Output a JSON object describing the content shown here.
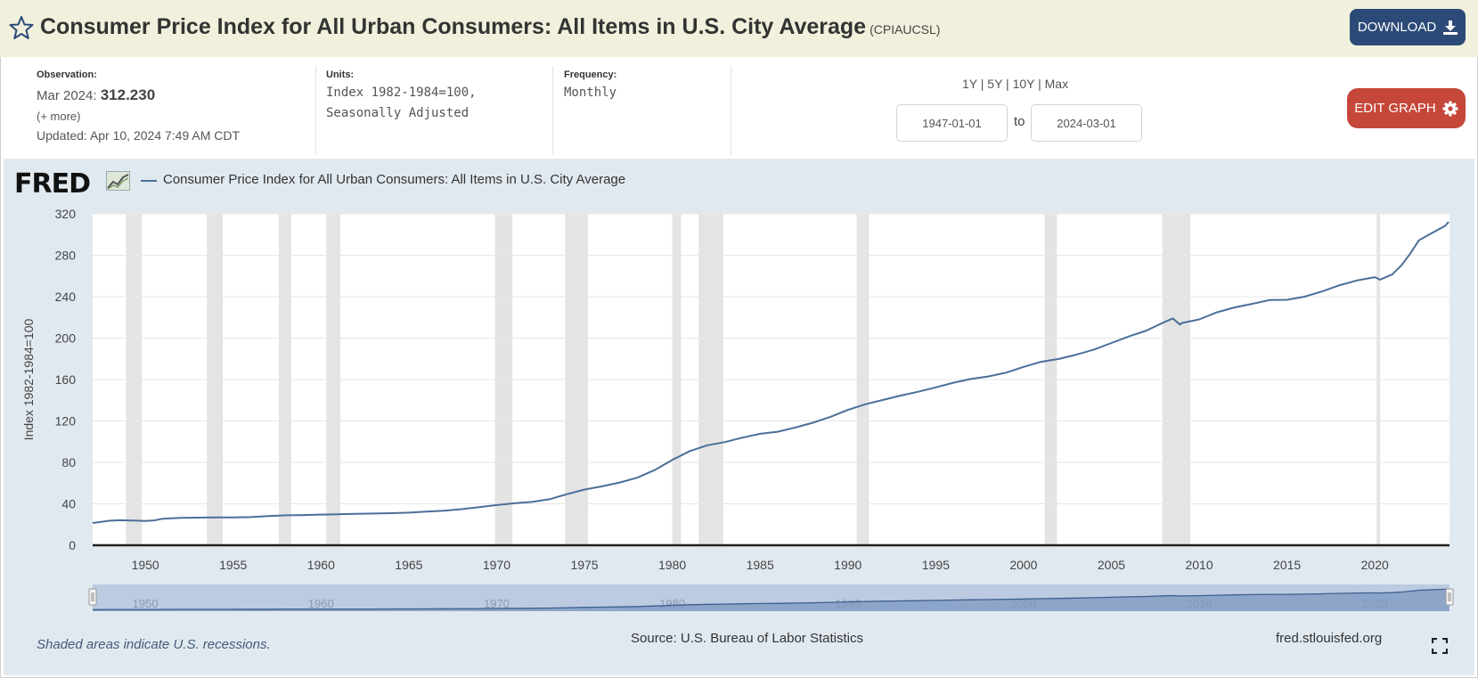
{
  "header": {
    "title": "Consumer Price Index for All Urban Consumers: All Items in U.S. City Average",
    "code": "(CPIAUCSL)",
    "download_label": "DOWNLOAD"
  },
  "meta": {
    "observation_label": "Observation:",
    "observation_date": "Mar 2024:",
    "observation_value": "312.230",
    "more": "(+ more)",
    "updated": "Updated: Apr 10, 2024 7:49 AM CDT",
    "units_label": "Units:",
    "units_line1": "Index 1982-1984=100,",
    "units_line2": "Seasonally Adjusted",
    "frequency_label": "Frequency:",
    "frequency_value": "Monthly"
  },
  "controls": {
    "ranges": "1Y | 5Y | 10Y | Max",
    "start_date": "1947-01-01",
    "to_label": "to",
    "end_date": "2024-03-01",
    "edit_label": "EDIT GRAPH"
  },
  "brand": {
    "logo_text": "FRED"
  },
  "footer": {
    "footnote": "Shaded areas indicate U.S. recessions.",
    "source": "Source: U.S. Bureau of Labor Statistics",
    "site": "fred.stlouisfed.org"
  },
  "colors": {
    "line": "#4b6f98",
    "recession": "#e4e4e4",
    "navigator_fill": "#bccbe1",
    "download_bg": "#2c4a78",
    "edit_bg": "#c5473a"
  },
  "chart_data": {
    "type": "line",
    "title": "Consumer Price Index for All Urban Consumers: All Items in U.S. City Average",
    "xlabel": "",
    "ylabel": "Index 1982-1984=100",
    "xlim": [
      1947.0,
      2024.25
    ],
    "ylim": [
      0,
      320
    ],
    "yticks": [
      0,
      40,
      80,
      120,
      160,
      200,
      240,
      280,
      320
    ],
    "xticks": [
      1950,
      1955,
      1960,
      1965,
      1970,
      1975,
      1980,
      1985,
      1990,
      1995,
      2000,
      2005,
      2010,
      2015,
      2020
    ],
    "navigator_ticks": [
      1950,
      1960,
      1970,
      1980,
      1990,
      2000,
      2010,
      2020
    ],
    "grid": true,
    "legend": "top-left",
    "recessions": [
      [
        1948.9,
        1949.8
      ],
      [
        1953.5,
        1954.4
      ],
      [
        1957.6,
        1958.3
      ],
      [
        1960.3,
        1961.1
      ],
      [
        1969.9,
        1970.9
      ],
      [
        1973.9,
        1975.2
      ],
      [
        1980.0,
        1980.5
      ],
      [
        1981.5,
        1982.9
      ],
      [
        1990.5,
        1991.2
      ],
      [
        2001.2,
        2001.9
      ],
      [
        2007.9,
        2009.5
      ],
      [
        2020.1,
        2020.3
      ]
    ],
    "series": [
      {
        "name": "Consumer Price Index for All Urban Consumers: All Items in U.S. City Average",
        "x": [
          1947.0,
          1948.0,
          1948.6,
          1949.5,
          1950.0,
          1950.5,
          1951.0,
          1952.0,
          1953.0,
          1954.0,
          1955.0,
          1956.0,
          1957.0,
          1958.0,
          1959.0,
          1960.0,
          1961.0,
          1962.0,
          1963.0,
          1964.0,
          1965.0,
          1966.0,
          1967.0,
          1968.0,
          1969.0,
          1970.0,
          1971.0,
          1972.0,
          1973.0,
          1974.0,
          1975.0,
          1976.0,
          1977.0,
          1978.0,
          1979.0,
          1980.0,
          1981.0,
          1982.0,
          1983.0,
          1984.0,
          1985.0,
          1986.0,
          1987.0,
          1988.0,
          1989.0,
          1990.0,
          1991.0,
          1992.0,
          1993.0,
          1994.0,
          1995.0,
          1996.0,
          1997.0,
          1998.0,
          1999.0,
          2000.0,
          2001.0,
          2002.0,
          2003.0,
          2004.0,
          2005.0,
          2006.0,
          2007.0,
          2008.0,
          2008.5,
          2008.9,
          2009.0,
          2010.0,
          2011.0,
          2012.0,
          2013.0,
          2014.0,
          2015.0,
          2016.0,
          2017.0,
          2018.0,
          2019.0,
          2020.0,
          2020.3,
          2021.0,
          2021.5,
          2022.0,
          2022.5,
          2023.0,
          2024.0,
          2024.2
        ],
        "values": [
          21.5,
          23.7,
          24.2,
          23.7,
          23.5,
          24.0,
          25.6,
          26.5,
          26.7,
          26.9,
          26.8,
          27.2,
          28.1,
          28.9,
          29.2,
          29.6,
          29.9,
          30.3,
          30.6,
          31.0,
          31.5,
          32.5,
          33.4,
          34.8,
          36.7,
          38.8,
          40.5,
          41.8,
          44.4,
          49.3,
          53.8,
          56.9,
          60.6,
          65.2,
          72.6,
          82.4,
          90.9,
          96.5,
          99.6,
          103.9,
          107.6,
          109.6,
          113.6,
          118.3,
          124.0,
          130.7,
          136.2,
          140.3,
          144.5,
          148.2,
          152.4,
          156.9,
          160.5,
          163.0,
          166.6,
          172.2,
          177.1,
          179.9,
          184.0,
          188.9,
          195.3,
          201.6,
          207.3,
          215.3,
          219.0,
          213.0,
          214.5,
          218.1,
          224.9,
          229.6,
          233.0,
          236.7,
          237.0,
          240.0,
          245.1,
          251.1,
          255.7,
          258.8,
          256.4,
          261.6,
          270.0,
          281.1,
          294.3,
          299.2,
          308.4,
          312.2
        ]
      }
    ]
  }
}
